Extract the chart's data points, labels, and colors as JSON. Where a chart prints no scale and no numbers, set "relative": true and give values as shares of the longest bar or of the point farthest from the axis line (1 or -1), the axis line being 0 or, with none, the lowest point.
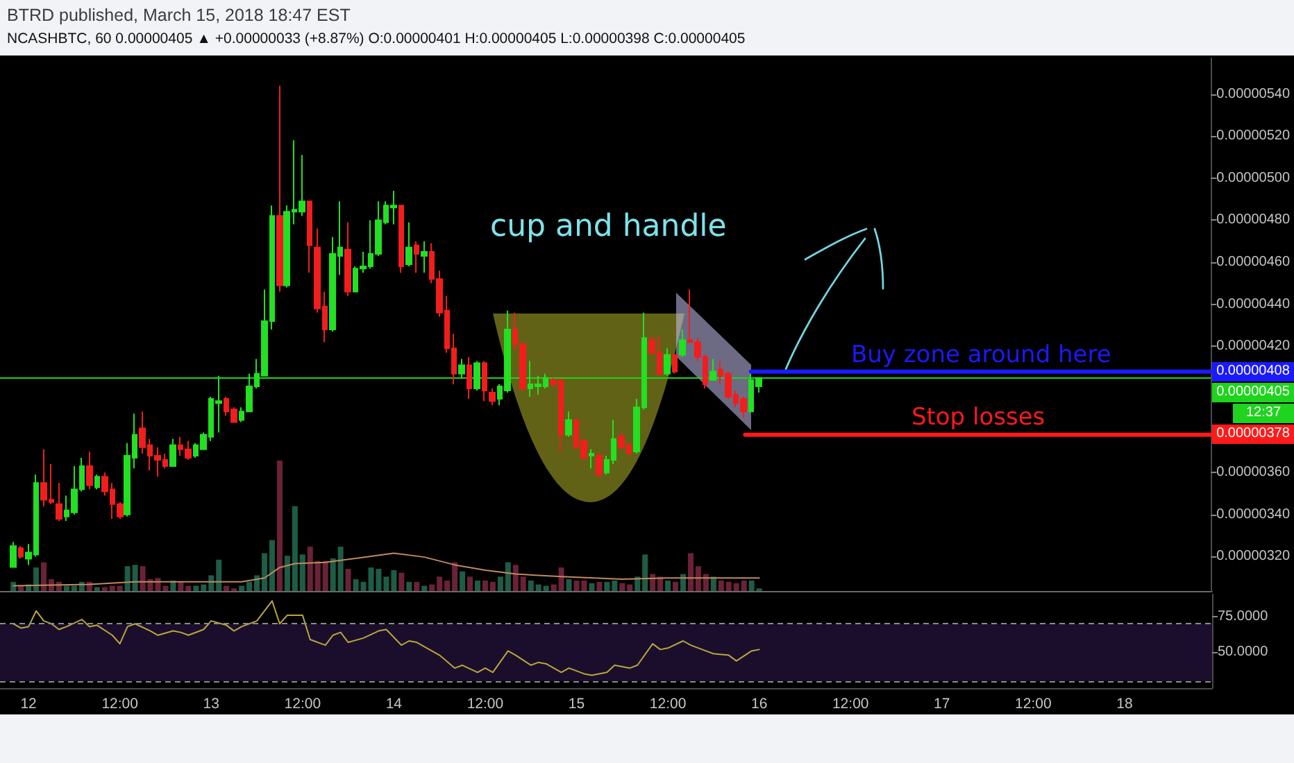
{
  "chart_data": [
    {
      "type": "candlestick",
      "title": "BTRD published, March 15, 2018 18:47 EST",
      "subtitle": "NCASHBTC, 60  0.00000405 ▲ +0.00000033 (+8.87%) O:0.00000401 H:0.00000405 L:0.00000398 C:0.00000405",
      "x": [
        "2018-03-11T22:00",
        "2018-03-11T23:00",
        "2018-03-12T00:00",
        "2018-03-12T01:00",
        "2018-03-12T02:00",
        "2018-03-12T03:00",
        "2018-03-12T04:00",
        "2018-03-12T05:00",
        "2018-03-12T06:00",
        "2018-03-12T07:00",
        "2018-03-12T08:00",
        "2018-03-12T09:00",
        "2018-03-12T10:00",
        "2018-03-12T11:00",
        "2018-03-12T12:00",
        "2018-03-12T13:00",
        "2018-03-12T14:00",
        "2018-03-12T15:00",
        "2018-03-12T16:00",
        "2018-03-12T17:00",
        "2018-03-12T18:00",
        "2018-03-12T19:00",
        "2018-03-12T20:00",
        "2018-03-12T21:00",
        "2018-03-12T22:00",
        "2018-03-12T23:00",
        "2018-03-13T00:00",
        "2018-03-13T01:00",
        "2018-03-13T02:00",
        "2018-03-13T03:00",
        "2018-03-13T04:00",
        "2018-03-13T05:00",
        "2018-03-13T06:00",
        "2018-03-13T07:00",
        "2018-03-13T08:00",
        "2018-03-13T09:00",
        "2018-03-13T10:00",
        "2018-03-13T11:00",
        "2018-03-13T12:00",
        "2018-03-13T13:00",
        "2018-03-13T14:00",
        "2018-03-13T15:00",
        "2018-03-13T16:00",
        "2018-03-13T17:00",
        "2018-03-13T18:00",
        "2018-03-13T19:00",
        "2018-03-13T20:00",
        "2018-03-13T21:00",
        "2018-03-13T22:00",
        "2018-03-13T23:00",
        "2018-03-14T00:00",
        "2018-03-14T01:00",
        "2018-03-14T02:00",
        "2018-03-14T03:00",
        "2018-03-14T04:00",
        "2018-03-14T05:00",
        "2018-03-14T06:00",
        "2018-03-14T07:00",
        "2018-03-14T08:00",
        "2018-03-14T09:00",
        "2018-03-14T10:00",
        "2018-03-14T11:00",
        "2018-03-14T12:00",
        "2018-03-14T13:00",
        "2018-03-14T14:00",
        "2018-03-14T15:00",
        "2018-03-14T16:00",
        "2018-03-14T17:00",
        "2018-03-14T18:00",
        "2018-03-14T19:00",
        "2018-03-14T20:00",
        "2018-03-14T21:00",
        "2018-03-14T22:00",
        "2018-03-14T23:00",
        "2018-03-15T00:00",
        "2018-03-15T01:00",
        "2018-03-15T02:00",
        "2018-03-15T03:00",
        "2018-03-15T04:00",
        "2018-03-15T05:00",
        "2018-03-15T06:00",
        "2018-03-15T07:00",
        "2018-03-15T08:00",
        "2018-03-15T09:00",
        "2018-03-15T10:00",
        "2018-03-15T11:00",
        "2018-03-15T12:00",
        "2018-03-15T13:00",
        "2018-03-15T14:00",
        "2018-03-15T15:00",
        "2018-03-15T16:00",
        "2018-03-15T17:00",
        "2018-03-15T18:00",
        "2018-03-15T19:00",
        "2018-03-15T20:00",
        "2018-03-15T21:00",
        "2018-03-15T22:00",
        "2018-03-15T23:00",
        "2018-03-16T00:00"
      ],
      "ohlc": [
        [
          3.15e-06,
          3.27e-06,
          3.15e-06,
          3.25e-06
        ],
        [
          3.24e-06,
          3.25e-06,
          3.19e-06,
          3.2e-06
        ],
        [
          3.19e-06,
          3.26e-06,
          3.16e-06,
          3.22e-06
        ],
        [
          3.21e-06,
          3.59e-06,
          3.2e-06,
          3.55e-06
        ],
        [
          3.55e-06,
          3.71e-06,
          3.44e-06,
          3.47e-06
        ],
        [
          3.47e-06,
          3.64e-06,
          3.45e-06,
          3.46e-06
        ],
        [
          3.45e-06,
          3.55e-06,
          3.37e-06,
          3.38e-06
        ],
        [
          3.39e-06,
          3.49e-06,
          3.37e-06,
          3.42e-06
        ],
        [
          3.41e-06,
          3.63e-06,
          3.4e-06,
          3.52e-06
        ],
        [
          3.52e-06,
          3.67e-06,
          3.51e-06,
          3.63e-06
        ],
        [
          3.63e-06,
          3.7e-06,
          3.52e-06,
          3.54e-06
        ],
        [
          3.53e-06,
          3.59e-06,
          3.52e-06,
          3.58e-06
        ],
        [
          3.58e-06,
          3.6e-06,
          3.49e-06,
          3.51e-06
        ],
        [
          3.52e-06,
          3.55e-06,
          3.38e-06,
          3.45e-06
        ],
        [
          3.45e-06,
          3.46e-06,
          3.38e-06,
          3.39e-06
        ],
        [
          3.4e-06,
          3.74e-06,
          3.39e-06,
          3.68e-06
        ],
        [
          3.67e-06,
          3.88e-06,
          3.62e-06,
          3.78e-06
        ],
        [
          3.81e-06,
          3.89e-06,
          3.69e-06,
          3.72e-06
        ],
        [
          3.73e-06,
          3.76e-06,
          3.61e-06,
          3.68e-06
        ],
        [
          3.68e-06,
          3.72e-06,
          3.58e-06,
          3.66e-06
        ],
        [
          3.66e-06,
          3.69e-06,
          3.62e-06,
          3.63e-06
        ],
        [
          3.63e-06,
          3.76e-06,
          3.63e-06,
          3.73e-06
        ],
        [
          3.73e-06,
          3.77e-06,
          3.68e-06,
          3.71e-06
        ],
        [
          3.71e-06,
          3.75e-06,
          3.66e-06,
          3.67e-06
        ],
        [
          3.68e-06,
          3.74e-06,
          3.67e-06,
          3.73e-06
        ],
        [
          3.71e-06,
          3.79e-06,
          3.71e-06,
          3.78e-06
        ],
        [
          3.77e-06,
          3.96e-06,
          3.75e-06,
          3.95e-06
        ],
        [
          3.93e-06,
          4.06e-06,
          3.79e-06,
          3.94e-06
        ],
        [
          3.95e-06,
          3.96e-06,
          3.87e-06,
          3.89e-06
        ],
        [
          3.9e-06,
          3.91e-06,
          3.84e-06,
          3.84e-06
        ],
        [
          3.85e-06,
          3.91e-06,
          3.84e-06,
          3.89e-06
        ],
        [
          3.89e-06,
          4.07e-06,
          3.89e-06,
          4.01e-06
        ],
        [
          4.01e-06,
          4.14e-06,
          4e-06,
          4.07e-06
        ],
        [
          4.06e-06,
          4.47e-06,
          4.06e-06,
          4.32e-06
        ],
        [
          4.32e-06,
          4.87e-06,
          4.28e-06,
          4.82e-06
        ],
        [
          4.82e-06,
          5.44e-06,
          4.46e-06,
          4.49e-06
        ],
        [
          4.49e-06,
          4.87e-06,
          4.48e-06,
          4.84e-06
        ],
        [
          4.84e-06,
          5.18e-06,
          4.78e-06,
          4.85e-06
        ],
        [
          4.84e-06,
          5.11e-06,
          4.82e-06,
          4.89e-06
        ],
        [
          4.89e-06,
          4.89e-06,
          4.55e-06,
          4.68e-06
        ],
        [
          4.67e-06,
          4.76e-06,
          4.36e-06,
          4.38e-06
        ],
        [
          4.39e-06,
          4.46e-06,
          4.22e-06,
          4.28e-06
        ],
        [
          4.28e-06,
          4.72e-06,
          4.27e-06,
          4.64e-06
        ],
        [
          4.63e-06,
          4.89e-06,
          4.54e-06,
          4.67e-06
        ],
        [
          4.66e-06,
          4.79e-06,
          4.44e-06,
          4.46e-06
        ],
        [
          4.46e-06,
          4.58e-06,
          4.46e-06,
          4.57e-06
        ],
        [
          4.57e-06,
          4.65e-06,
          4.55e-06,
          4.58e-06
        ],
        [
          4.58e-06,
          4.8e-06,
          4.57e-06,
          4.64e-06
        ],
        [
          4.64e-06,
          4.89e-06,
          4.63e-06,
          4.8e-06
        ],
        [
          4.79e-06,
          4.89e-06,
          4.78e-06,
          4.87e-06
        ],
        [
          4.86e-06,
          4.94e-06,
          4.78e-06,
          4.87e-06
        ],
        [
          4.87e-06,
          4.87e-06,
          4.55e-06,
          4.58e-06
        ],
        [
          4.59e-06,
          4.79e-06,
          4.58e-06,
          4.67e-06
        ],
        [
          4.68e-06,
          4.7e-06,
          4.55e-06,
          4.64e-06
        ],
        [
          4.63e-06,
          4.7e-06,
          4.55e-06,
          4.65e-06
        ],
        [
          4.65e-06,
          4.69e-06,
          4.5e-06,
          4.52e-06
        ],
        [
          4.52e-06,
          4.56e-06,
          4.34e-06,
          4.36e-06
        ],
        [
          4.37e-06,
          4.44e-06,
          4.17e-06,
          4.19e-06
        ],
        [
          4.19e-06,
          4.26e-06,
          4.02e-06,
          4.07e-06
        ],
        [
          4.07e-06,
          4.14e-06,
          4.05e-06,
          4.11e-06
        ],
        [
          4.11e-06,
          4.15e-06,
          3.95e-06,
          4e-06
        ],
        [
          4e-06,
          4.13e-06,
          3.99e-06,
          4.12e-06
        ],
        [
          4.12e-06,
          4.13e-06,
          3.94e-06,
          3.99e-06
        ],
        [
          3.98e-06,
          4e-06,
          3.92e-06,
          3.94e-06
        ],
        [
          3.95e-06,
          4.02e-06,
          3.92e-06,
          4.01e-06
        ],
        [
          3.99e-06,
          4.37e-06,
          3.98e-06,
          4.28e-06
        ],
        [
          4.28e-06,
          4.36e-06,
          4.18e-06,
          4.21e-06
        ],
        [
          4.21e-06,
          4.22e-06,
          3.99e-06,
          4e-06
        ],
        [
          4e-06,
          4.13e-06,
          3.96e-06,
          4.02e-06
        ],
        [
          4.01e-06,
          4.06e-06,
          3.97e-06,
          4.02e-06
        ],
        [
          4.01e-06,
          4.07e-06,
          4e-06,
          4.05e-06
        ],
        [
          4.04e-06,
          4.05e-06,
          4.01e-06,
          4.02e-06
        ],
        [
          4.04e-06,
          4.04e-06,
          3.7e-06,
          3.78e-06
        ],
        [
          3.78e-06,
          3.89e-06,
          3.77e-06,
          3.85e-06
        ],
        [
          3.85e-06,
          3.85e-06,
          3.71e-06,
          3.72e-06
        ],
        [
          3.75e-06,
          3.76e-06,
          3.66e-06,
          3.67e-06
        ],
        [
          3.68e-06,
          3.71e-06,
          3.62e-06,
          3.69e-06
        ],
        [
          3.68e-06,
          3.69e-06,
          3.58e-06,
          3.59e-06
        ],
        [
          3.6e-06,
          3.68e-06,
          3.59e-06,
          3.66e-06
        ],
        [
          3.66e-06,
          3.85e-06,
          3.64e-06,
          3.76e-06
        ],
        [
          3.77e-06,
          3.79e-06,
          3.71e-06,
          3.72e-06
        ],
        [
          3.73e-06,
          3.74e-06,
          3.69e-06,
          3.69e-06
        ],
        [
          3.7e-06,
          3.95e-06,
          3.69e-06,
          3.91e-06
        ],
        [
          3.91e-06,
          4.36e-06,
          3.9e-06,
          4.24e-06
        ],
        [
          4.23e-06,
          4.25e-06,
          4.16e-06,
          4.17e-06
        ],
        [
          4.17e-06,
          4.25e-06,
          4.06e-06,
          4.07e-06
        ],
        [
          4.07e-06,
          4.19e-06,
          4.06e-06,
          4.16e-06
        ],
        [
          4.16e-06,
          4.16e-06,
          4.07e-06,
          4.08e-06
        ],
        [
          4.16e-06,
          4.28e-06,
          4.15e-06,
          4.23e-06
        ],
        [
          4.23e-06,
          4.47e-06,
          4.22e-06,
          4.22e-06
        ],
        [
          4.22e-06,
          4.24e-06,
          4.13e-06,
          4.15e-06
        ],
        [
          4.15e-06,
          4.16e-06,
          4e-06,
          4.02e-06
        ],
        [
          4.04e-06,
          4.14e-06,
          4.04e-06,
          4.08e-06
        ],
        [
          4.09e-06,
          4.13e-06,
          4.02e-06,
          4.06e-06
        ],
        [
          4.07e-06,
          4.08e-06,
          3.95e-06,
          3.96e-06
        ],
        [
          3.97e-06,
          3.99e-06,
          3.91e-06,
          3.93e-06
        ],
        [
          3.95e-06,
          3.96e-06,
          3.86e-06,
          3.89e-06
        ],
        [
          3.89e-06,
          4.07e-06,
          3.89e-06,
          4.04e-06
        ],
        [
          4.01e-06,
          4.05e-06,
          3.98e-06,
          4.05e-06
        ]
      ],
      "colors": [
        "#22e022",
        "#f21d1d",
        "#22e022",
        "#22e022",
        "#f21d1d",
        "#f21d1d",
        "#f21d1d",
        "#22e022",
        "#22e022",
        "#22e022",
        "#f21d1d",
        "#22e022",
        "#f21d1d",
        "#f21d1d",
        "#f21d1d",
        "#22e022",
        "#22e022",
        "#f21d1d",
        "#f21d1d",
        "#f21d1d",
        "#f21d1d",
        "#22e022",
        "#f21d1d",
        "#f21d1d",
        "#22e022",
        "#22e022",
        "#22e022",
        "#22e022",
        "#f21d1d",
        "#f21d1d",
        "#22e022",
        "#22e022",
        "#22e022",
        "#22e022",
        "#22e022",
        "#f21d1d",
        "#22e022",
        "#22e022",
        "#22e022",
        "#f21d1d",
        "#f21d1d",
        "#f21d1d",
        "#22e022",
        "#22e022",
        "#f21d1d",
        "#22e022",
        "#22e022",
        "#22e022",
        "#22e022",
        "#22e022",
        "#22e022",
        "#f21d1d",
        "#22e022",
        "#f21d1d",
        "#22e022",
        "#f21d1d",
        "#f21d1d",
        "#f21d1d",
        "#f21d1d",
        "#22e022",
        "#f21d1d",
        "#22e022",
        "#f21d1d",
        "#f21d1d",
        "#22e022",
        "#22e022",
        "#f21d1d",
        "#f21d1d",
        "#22e022",
        "#22e022",
        "#22e022",
        "#f21d1d",
        "#f21d1d",
        "#22e022",
        "#f21d1d",
        "#f21d1d",
        "#22e022",
        "#f21d1d",
        "#22e022",
        "#22e022",
        "#f21d1d",
        "#f21d1d",
        "#22e022",
        "#22e022",
        "#f21d1d",
        "#f21d1d",
        "#22e022",
        "#f21d1d",
        "#22e022",
        "#f21d1d",
        "#f21d1d",
        "#f21d1d",
        "#22e022",
        "#f21d1d",
        "#f21d1d",
        "#f21d1d",
        "#f21d1d",
        "#22e022",
        "#22e022"
      ],
      "series": [
        {
          "type": "line",
          "name": "Buy zone around here",
          "color": "#1a1aff",
          "x": [
            "2018-03-15T23:00",
            "2018-03-18T11:30"
          ],
          "values": [
            4.08e-06,
            4.08e-06
          ],
          "value_labels": [
            null,
            "0.00000408"
          ]
        },
        {
          "type": "line",
          "name": "Stop losses",
          "color": "#ff1a1a",
          "x": [
            "2018-03-15T22:15",
            "2018-03-18T11:30"
          ],
          "values": [
            3.78e-06,
            3.78e-06
          ],
          "value_labels": [
            null,
            "0.00000378"
          ]
        }
      ],
      "ref_lines": [
        {
          "axis": "y",
          "value": 4.05e-06,
          "label": "0.00000405",
          "color": "#1fd31f"
        }
      ],
      "annotations": [
        "cup and handle",
        "12:37"
      ],
      "xlim": [
        "2018-03-11T20:15",
        "2018-03-18T11:30"
      ],
      "ylim": [
        3.03e-06,
        5.57e-06
      ],
      "yticks": [
        {
          "value": 3.2e-06,
          "label": "0.00000320"
        },
        {
          "value": 3.4e-06,
          "label": "0.00000340"
        },
        {
          "value": 3.6e-06,
          "label": "0.00000360"
        },
        {
          "value": 4.2e-06,
          "label": "0.00000420"
        },
        {
          "value": 4.4e-06,
          "label": "0.00000440"
        },
        {
          "value": 4.6e-06,
          "label": "0.00000460"
        },
        {
          "value": 4.8e-06,
          "label": "0.00000480"
        },
        {
          "value": 5e-06,
          "label": "0.00000500"
        },
        {
          "value": 5.2e-06,
          "label": "0.00000520"
        },
        {
          "value": 5.4e-06,
          "label": "0.00000540"
        }
      ],
      "tick_labels": "y"
    },
    {
      "type": "bar",
      "relative": true,
      "x": [
        "2018-03-11T22:00",
        "2018-03-11T23:00",
        "2018-03-12T00:00",
        "2018-03-12T01:00",
        "2018-03-12T02:00",
        "2018-03-12T03:00",
        "2018-03-12T04:00",
        "2018-03-12T05:00",
        "2018-03-12T06:00",
        "2018-03-12T07:00",
        "2018-03-12T08:00",
        "2018-03-12T09:00",
        "2018-03-12T10:00",
        "2018-03-12T11:00",
        "2018-03-12T12:00",
        "2018-03-12T13:00",
        "2018-03-12T14:00",
        "2018-03-12T15:00",
        "2018-03-12T16:00",
        "2018-03-12T17:00",
        "2018-03-12T18:00",
        "2018-03-12T19:00",
        "2018-03-12T20:00",
        "2018-03-12T21:00",
        "2018-03-12T22:00",
        "2018-03-12T23:00",
        "2018-03-13T00:00",
        "2018-03-13T01:00",
        "2018-03-13T02:00",
        "2018-03-13T03:00",
        "2018-03-13T04:00",
        "2018-03-13T05:00",
        "2018-03-13T06:00",
        "2018-03-13T07:00",
        "2018-03-13T08:00",
        "2018-03-13T09:00",
        "2018-03-13T10:00",
        "2018-03-13T11:00",
        "2018-03-13T12:00",
        "2018-03-13T13:00",
        "2018-03-13T14:00",
        "2018-03-13T15:00",
        "2018-03-13T16:00",
        "2018-03-13T17:00",
        "2018-03-13T18:00",
        "2018-03-13T19:00",
        "2018-03-13T20:00",
        "2018-03-13T21:00",
        "2018-03-13T22:00",
        "2018-03-13T23:00",
        "2018-03-14T00:00",
        "2018-03-14T01:00",
        "2018-03-14T02:00",
        "2018-03-14T03:00",
        "2018-03-14T04:00",
        "2018-03-14T05:00",
        "2018-03-14T06:00",
        "2018-03-14T07:00",
        "2018-03-14T08:00",
        "2018-03-14T09:00",
        "2018-03-14T10:00",
        "2018-03-14T11:00",
        "2018-03-14T12:00",
        "2018-03-14T13:00",
        "2018-03-14T14:00",
        "2018-03-14T15:00",
        "2018-03-14T16:00",
        "2018-03-14T17:00",
        "2018-03-14T18:00",
        "2018-03-14T19:00",
        "2018-03-14T20:00",
        "2018-03-14T21:00",
        "2018-03-14T22:00",
        "2018-03-14T23:00",
        "2018-03-15T00:00",
        "2018-03-15T01:00",
        "2018-03-15T02:00",
        "2018-03-15T03:00",
        "2018-03-15T04:00",
        "2018-03-15T05:00",
        "2018-03-15T06:00",
        "2018-03-15T07:00",
        "2018-03-15T08:00",
        "2018-03-15T09:00",
        "2018-03-15T10:00",
        "2018-03-15T11:00",
        "2018-03-15T12:00",
        "2018-03-15T13:00",
        "2018-03-15T14:00",
        "2018-03-15T15:00",
        "2018-03-15T16:00",
        "2018-03-15T17:00",
        "2018-03-15T18:00",
        "2018-03-15T19:00",
        "2018-03-15T20:00",
        "2018-03-15T21:00",
        "2018-03-15T22:00",
        "2018-03-15T23:00",
        "2018-03-16T00:00"
      ],
      "series": [
        {
          "type": "bar",
          "values": [
            0.07,
            0.04,
            0.05,
            0.18,
            0.22,
            0.09,
            0.07,
            0.04,
            0.04,
            0.07,
            0.07,
            0.03,
            0.03,
            0.04,
            0.04,
            0.19,
            0.2,
            0.19,
            0.09,
            0.1,
            0.04,
            0.08,
            0.07,
            0.04,
            0.04,
            0.05,
            0.12,
            0.24,
            0.04,
            0.02,
            0.04,
            0.07,
            0.12,
            0.29,
            0.39,
            1,
            0.27,
            0.65,
            0.28,
            0.34,
            0.23,
            0.23,
            0.25,
            0.34,
            0.17,
            0.09,
            0.07,
            0.18,
            0.17,
            0.11,
            0.16,
            0.14,
            0.07,
            0.07,
            0.04,
            0.05,
            0.11,
            0.08,
            0.22,
            0.15,
            0.11,
            0.08,
            0.08,
            0.07,
            0.11,
            0.22,
            0.2,
            0.11,
            0.08,
            0.05,
            0.04,
            0.05,
            0.18,
            0.09,
            0.08,
            0.08,
            0.06,
            0.07,
            0.07,
            0.08,
            0.06,
            0.05,
            0.11,
            0.28,
            0.13,
            0.11,
            0.08,
            0.07,
            0.13,
            0.29,
            0.19,
            0.13,
            0.11,
            0.08,
            0.07,
            0.06,
            0.08,
            0.08,
            0.02
          ],
          "colors": [
            "#1e5c46",
            "#6b2236",
            "#1e5c46",
            "#1e5c46",
            "#6b2236",
            "#6b2236",
            "#6b2236",
            "#1e5c46",
            "#1e5c46",
            "#1e5c46",
            "#6b2236",
            "#1e5c46",
            "#6b2236",
            "#6b2236",
            "#6b2236",
            "#1e5c46",
            "#1e5c46",
            "#6b2236",
            "#6b2236",
            "#6b2236",
            "#6b2236",
            "#1e5c46",
            "#6b2236",
            "#6b2236",
            "#1e5c46",
            "#1e5c46",
            "#1e5c46",
            "#1e5c46",
            "#6b2236",
            "#6b2236",
            "#1e5c46",
            "#1e5c46",
            "#1e5c46",
            "#1e5c46",
            "#1e5c46",
            "#6b2236",
            "#1e5c46",
            "#1e5c46",
            "#1e5c46",
            "#6b2236",
            "#6b2236",
            "#6b2236",
            "#1e5c46",
            "#1e5c46",
            "#6b2236",
            "#1e5c46",
            "#1e5c46",
            "#1e5c46",
            "#1e5c46",
            "#1e5c46",
            "#1e5c46",
            "#6b2236",
            "#1e5c46",
            "#6b2236",
            "#1e5c46",
            "#6b2236",
            "#6b2236",
            "#6b2236",
            "#6b2236",
            "#1e5c46",
            "#6b2236",
            "#1e5c46",
            "#6b2236",
            "#6b2236",
            "#1e5c46",
            "#1e5c46",
            "#6b2236",
            "#6b2236",
            "#1e5c46",
            "#1e5c46",
            "#1e5c46",
            "#6b2236",
            "#6b2236",
            "#1e5c46",
            "#6b2236",
            "#6b2236",
            "#1e5c46",
            "#6b2236",
            "#1e5c46",
            "#1e5c46",
            "#6b2236",
            "#6b2236",
            "#1e5c46",
            "#1e5c46",
            "#6b2236",
            "#6b2236",
            "#1e5c46",
            "#6b2236",
            "#1e5c46",
            "#6b2236",
            "#6b2236",
            "#6b2236",
            "#1e5c46",
            "#6b2236",
            "#6b2236",
            "#6b2236",
            "#6b2236",
            "#1e5c46",
            "#1e5c46"
          ]
        },
        {
          "type": "line",
          "color": "#c08a5e",
          "x": [
            "2018-03-11T22:00",
            "2018-03-12T08:00",
            "2018-03-12T14:00",
            "2018-03-13T04:00",
            "2018-03-13T07:00",
            "2018-03-13T09:00",
            "2018-03-13T11:00",
            "2018-03-13T15:00",
            "2018-03-13T19:00",
            "2018-03-14T00:00",
            "2018-03-14T04:00",
            "2018-03-14T08:00",
            "2018-03-14T12:00",
            "2018-03-14T16:00",
            "2018-03-14T22:00",
            "2018-03-15T06:00",
            "2018-03-15T12:00",
            "2018-03-15T18:00",
            "2018-03-16T00:00"
          ],
          "values": [
            0.04,
            0.05,
            0.07,
            0.07,
            0.1,
            0.18,
            0.21,
            0.22,
            0.25,
            0.29,
            0.26,
            0.2,
            0.16,
            0.13,
            0.11,
            0.09,
            0.1,
            0.1,
            0.1
          ]
        }
      ],
      "xlim": [
        "2018-03-11T20:15",
        "2018-03-18T11:30"
      ],
      "tick_labels": false
    },
    {
      "type": "line",
      "color": "#b9a73c",
      "x": [
        "2018-03-11T22:00",
        "2018-03-11T23:00",
        "2018-03-12T00:00",
        "2018-03-12T01:00",
        "2018-03-12T02:00",
        "2018-03-12T03:00",
        "2018-03-12T04:00",
        "2018-03-12T05:00",
        "2018-03-12T07:00",
        "2018-03-12T08:00",
        "2018-03-12T09:00",
        "2018-03-12T11:00",
        "2018-03-12T12:00",
        "2018-03-12T13:00",
        "2018-03-12T14:00",
        "2018-03-12T16:00",
        "2018-03-12T17:00",
        "2018-03-12T19:00",
        "2018-03-12T20:00",
        "2018-03-12T21:00",
        "2018-03-12T23:00",
        "2018-03-13T00:00",
        "2018-03-13T02:00",
        "2018-03-13T03:00",
        "2018-03-13T04:00",
        "2018-03-13T06:00",
        "2018-03-13T08:00",
        "2018-03-13T09:00",
        "2018-03-13T10:00",
        "2018-03-13T12:00",
        "2018-03-13T13:00",
        "2018-03-13T15:00",
        "2018-03-13T16:00",
        "2018-03-13T17:00",
        "2018-03-13T18:00",
        "2018-03-13T20:00",
        "2018-03-13T22:00",
        "2018-03-13T23:00",
        "2018-03-14T01:00",
        "2018-03-14T02:00",
        "2018-03-14T03:00",
        "2018-03-14T06:00",
        "2018-03-14T08:00",
        "2018-03-14T09:00",
        "2018-03-14T11:00",
        "2018-03-14T12:00",
        "2018-03-14T13:00",
        "2018-03-14T15:00",
        "2018-03-14T16:00",
        "2018-03-14T18:00",
        "2018-03-14T19:00",
        "2018-03-14T20:00",
        "2018-03-14T22:00",
        "2018-03-14T23:00",
        "2018-03-15T01:00",
        "2018-03-15T02:00",
        "2018-03-15T04:00",
        "2018-03-15T05:00",
        "2018-03-15T07:00",
        "2018-03-15T08:00",
        "2018-03-15T10:00",
        "2018-03-15T11:00",
        "2018-03-15T12:00",
        "2018-03-15T14:00",
        "2018-03-15T15:00",
        "2018-03-15T17:00",
        "2018-03-15T18:00",
        "2018-03-15T20:00",
        "2018-03-15T21:00",
        "2018-03-15T23:00",
        "2018-03-16T00:00"
      ],
      "values": [
        70,
        67,
        68,
        79,
        72,
        70,
        66,
        68,
        73,
        68,
        69,
        62,
        56,
        68,
        70,
        65,
        62,
        65,
        64,
        62,
        66,
        72,
        69,
        65,
        68,
        72,
        86,
        70,
        76,
        76,
        59,
        55,
        62,
        64,
        57,
        60,
        65,
        66,
        55,
        58,
        57,
        48,
        39,
        41,
        36,
        39,
        36,
        51,
        48,
        41,
        43,
        42,
        36,
        39,
        35,
        34,
        36,
        41,
        39,
        41,
        56,
        52,
        53,
        58,
        55,
        51,
        49,
        48,
        44,
        51,
        52
      ],
      "xlim": [
        "2018-03-11T20:15",
        "2018-03-18T11:30"
      ],
      "ylim": [
        25,
        91
      ],
      "xticks": [
        {
          "value": "2018-03-12T00:00",
          "label": "12"
        },
        {
          "value": "2018-03-12T12:00",
          "label": "12:00"
        },
        {
          "value": "2018-03-13T00:00",
          "label": "13"
        },
        {
          "value": "2018-03-13T12:00",
          "label": "12:00"
        },
        {
          "value": "2018-03-14T00:00",
          "label": "14"
        },
        {
          "value": "2018-03-14T12:00",
          "label": "12:00"
        },
        {
          "value": "2018-03-15T00:00",
          "label": "15"
        },
        {
          "value": "2018-03-15T12:00",
          "label": "12:00"
        },
        {
          "value": "2018-03-16T00:00",
          "label": "16"
        },
        {
          "value": "2018-03-16T12:00",
          "label": "12:00"
        },
        {
          "value": "2018-03-17T00:00",
          "label": "17"
        },
        {
          "value": "2018-03-17T12:00",
          "label": "12:00"
        },
        {
          "value": "2018-03-18T00:00",
          "label": "18"
        }
      ],
      "yticks": [
        {
          "value": 75,
          "label": "75.0000"
        },
        {
          "value": 50,
          "label": "50.0000"
        }
      ],
      "ref_lines": [
        {
          "axis": "y",
          "value": 70,
          "color": "#8c8c8c",
          "line_style": "dashed"
        },
        {
          "axis": "y",
          "value": 30,
          "color": "#8c8c8c",
          "line_style": "dashed"
        }
      ],
      "bands": [
        {
          "axis": "y",
          "from": 30,
          "to": 70,
          "color": "#1b0e2c"
        }
      ]
    }
  ]
}
